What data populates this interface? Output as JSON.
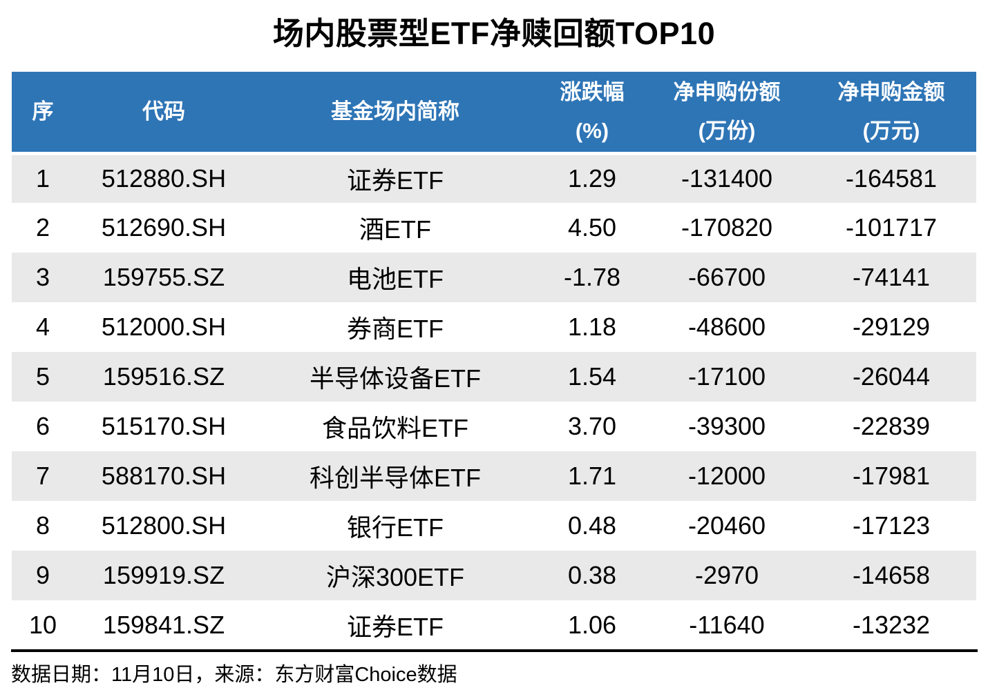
{
  "title": "场内股票型ETF净赎回额TOP10",
  "colors": {
    "header_bg": "#2E75B6",
    "header_text": "#FFFFFF",
    "row_alt_bg": "#E9E9E9",
    "row_bg": "#FFFFFF",
    "body_text": "#000000"
  },
  "table": {
    "columns": [
      {
        "label": "序",
        "sub": ""
      },
      {
        "label": "代码",
        "sub": ""
      },
      {
        "label": "基金场内简称",
        "sub": ""
      },
      {
        "label": "涨跌幅",
        "sub": "(%)"
      },
      {
        "label": "净申购份额",
        "sub": "(万份)"
      },
      {
        "label": "净申购金额",
        "sub": "(万元)"
      }
    ],
    "rows": [
      [
        "1",
        "512880.SH",
        "证券ETF",
        "1.29",
        "-131400",
        "-164581"
      ],
      [
        "2",
        "512690.SH",
        "酒ETF",
        "4.50",
        "-170820",
        "-101717"
      ],
      [
        "3",
        "159755.SZ",
        "电池ETF",
        "-1.78",
        "-66700",
        "-74141"
      ],
      [
        "4",
        "512000.SH",
        "券商ETF",
        "1.18",
        "-48600",
        "-29129"
      ],
      [
        "5",
        "159516.SZ",
        "半导体设备ETF",
        "1.54",
        "-17100",
        "-26044"
      ],
      [
        "6",
        "515170.SH",
        "食品饮料ETF",
        "3.70",
        "-39300",
        "-22839"
      ],
      [
        "7",
        "588170.SH",
        "科创半导体ETF",
        "1.71",
        "-12000",
        "-17981"
      ],
      [
        "8",
        "512800.SH",
        "银行ETF",
        "0.48",
        "-20460",
        "-17123"
      ],
      [
        "9",
        "159919.SZ",
        "沪深300ETF",
        "0.38",
        "-2970",
        "-14658"
      ],
      [
        "10",
        "159841.SZ",
        "证券ETF",
        "1.06",
        "-11640",
        "-13232"
      ]
    ]
  },
  "footer": {
    "text": "数据日期：11月10日，来源：东方财富Choice数据"
  },
  "chart_data": {
    "type": "table",
    "title": "场内股票型ETF净赎回额TOP10",
    "columns": [
      "序",
      "代码",
      "基金场内简称",
      "涨跌幅(%)",
      "净申购份额(万份)",
      "净申购金额(万元)"
    ],
    "rows": [
      [
        1,
        "512880.SH",
        "证券ETF",
        1.29,
        -131400,
        -164581
      ],
      [
        2,
        "512690.SH",
        "酒ETF",
        4.5,
        -170820,
        -101717
      ],
      [
        3,
        "159755.SZ",
        "电池ETF",
        -1.78,
        -66700,
        -74141
      ],
      [
        4,
        "512000.SH",
        "券商ETF",
        1.18,
        -48600,
        -29129
      ],
      [
        5,
        "159516.SZ",
        "半导体设备ETF",
        1.54,
        -17100,
        -26044
      ],
      [
        6,
        "515170.SH",
        "食品饮料ETF",
        3.7,
        -39300,
        -22839
      ],
      [
        7,
        "588170.SH",
        "科创半导体ETF",
        1.71,
        -12000,
        -17981
      ],
      [
        8,
        "512800.SH",
        "银行ETF",
        0.48,
        -20460,
        -17123
      ],
      [
        9,
        "159919.SZ",
        "沪深300ETF",
        0.38,
        -2970,
        -14658
      ],
      [
        10,
        "159841.SZ",
        "证券ETF",
        1.06,
        -11640,
        -13232
      ]
    ],
    "source_note": "数据日期：11月10日，来源：东方财富Choice数据"
  }
}
